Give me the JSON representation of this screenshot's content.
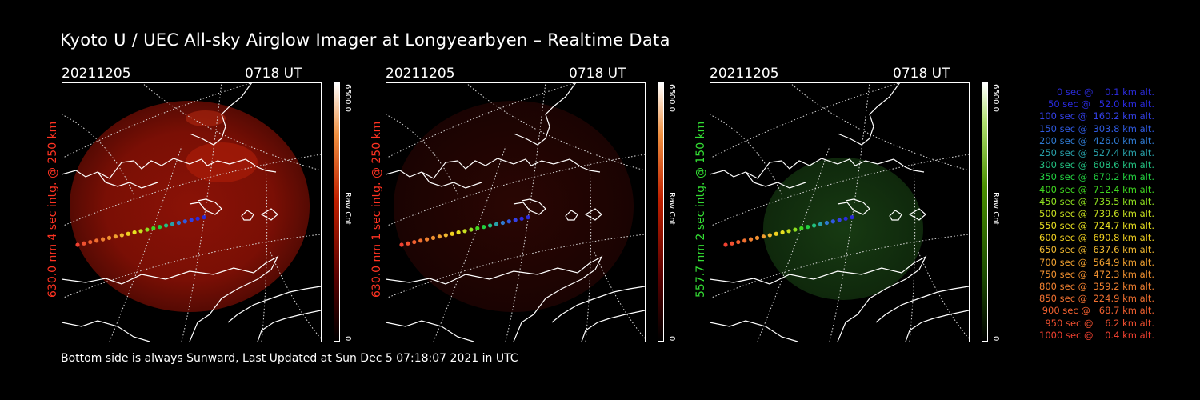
{
  "title": "Kyoto U / UEC All-sky Airglow Imager at Longyearbyen – Realtime Data",
  "footer": "Bottom side is always Sunward, Last Updated at Sun Dec  5 07:18:07 2021 in UTC",
  "panels": [
    {
      "date": "20211205",
      "time": "0718 UT",
      "side_label": "630.0 nm 4 sec intg. @ 250 km",
      "colorbar_max": "6500.0",
      "colorbar_min": "0",
      "colorbar_unit": "Raw Cnt",
      "label_color": "#ff3322",
      "kind": "red-bright"
    },
    {
      "date": "20211205",
      "time": "0718 UT",
      "side_label": "630.0 nm 1 sec intg. @ 250 km",
      "colorbar_max": "6500.0",
      "colorbar_min": "0",
      "colorbar_unit": "Raw Cnt",
      "label_color": "#ff3322",
      "kind": "red-dim"
    },
    {
      "date": "20211205",
      "time": "0718 UT",
      "side_label": "557.7 nm 2 sec intg. @ 150 km",
      "colorbar_max": "6500.0",
      "colorbar_min": "0",
      "colorbar_unit": "Raw Cnt",
      "label_color": "#33dd33",
      "kind": "green"
    }
  ],
  "legend": [
    {
      "text": "  0 sec @    0.1 km alt.",
      "color": "#2b2bd9"
    },
    {
      "text": " 50 sec @   52.0 km alt.",
      "color": "#2a2ae0"
    },
    {
      "text": "100 sec @  160.2 km alt.",
      "color": "#3340e6"
    },
    {
      "text": "150 sec @  303.8 km alt.",
      "color": "#2f5ae0"
    },
    {
      "text": "200 sec @  426.0 km alt.",
      "color": "#2f7ad0"
    },
    {
      "text": "250 sec @  527.4 km alt.",
      "color": "#28a0a8"
    },
    {
      "text": "300 sec @  608.6 km alt.",
      "color": "#22c080"
    },
    {
      "text": "350 sec @  670.2 km alt.",
      "color": "#22d040"
    },
    {
      "text": "400 sec @  712.4 km alt.",
      "color": "#40d820"
    },
    {
      "text": "450 sec @  735.5 km alt.",
      "color": "#90e020"
    },
    {
      "text": "500 sec @  739.6 km alt.",
      "color": "#c8e020"
    },
    {
      "text": "550 sec @  724.7 km alt.",
      "color": "#e8e020"
    },
    {
      "text": "600 sec @  690.8 km alt.",
      "color": "#f0d020"
    },
    {
      "text": "650 sec @  637.6 km alt.",
      "color": "#f0b830"
    },
    {
      "text": "700 sec @  564.9 km alt.",
      "color": "#f0a030"
    },
    {
      "text": "750 sec @  472.3 km alt.",
      "color": "#f09030"
    },
    {
      "text": "800 sec @  359.2 km alt.",
      "color": "#f08030"
    },
    {
      "text": "850 sec @  224.9 km alt.",
      "color": "#f07030"
    },
    {
      "text": "900 sec @   68.7 km alt.",
      "color": "#f06030"
    },
    {
      "text": "950 sec @    6.2 km alt.",
      "color": "#f05030"
    },
    {
      "text": "1000 sec @    0.4 km alt.",
      "color": "#f04030"
    }
  ]
}
